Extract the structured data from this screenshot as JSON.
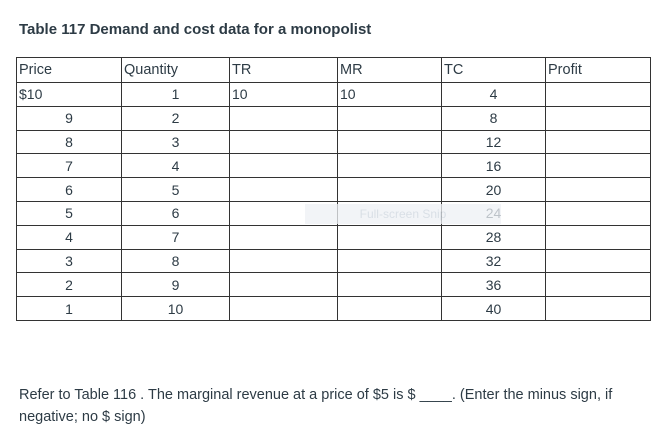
{
  "title": "Table 117 Demand and cost data for a monopolist",
  "table": {
    "headers": [
      "Price",
      "Quantity",
      "TR",
      "MR",
      "TC",
      "Profit"
    ],
    "rows": [
      [
        "$10",
        "1",
        "10",
        "10",
        "4",
        ""
      ],
      [
        "9",
        "2",
        "",
        "",
        "8",
        ""
      ],
      [
        "8",
        "3",
        "",
        "",
        "12",
        ""
      ],
      [
        "7",
        "4",
        "",
        "",
        "16",
        ""
      ],
      [
        "6",
        "5",
        "",
        "",
        "20",
        ""
      ],
      [
        "5",
        "6",
        "",
        "",
        "24",
        ""
      ],
      [
        "4",
        "7",
        "",
        "",
        "28",
        ""
      ],
      [
        "3",
        "8",
        "",
        "",
        "32",
        ""
      ],
      [
        "2",
        "9",
        "",
        "",
        "36",
        ""
      ],
      [
        "1",
        "10",
        "",
        "",
        "40",
        ""
      ]
    ]
  },
  "overlay_text": "Full-screen Snip",
  "question": {
    "text_before": "Refer to Table 116 . The marginal revenue at a price of $5 is $ ",
    "blank": "____",
    "text_after": ". (Enter the minus sign, if negative; no $ sign)"
  }
}
